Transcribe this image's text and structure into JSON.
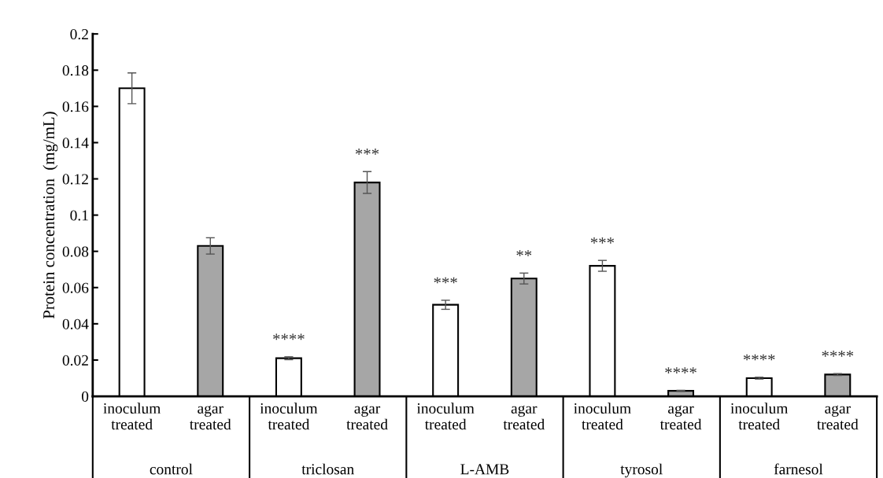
{
  "chart_data": {
    "type": "bar",
    "ylabel": "Protein concentration  (mg/mL)",
    "categories": [
      "inoculum\ntreated",
      "agar\ntreated",
      "inoculum\ntreated",
      "agar\ntreated",
      "inoculum\ntreated",
      "agar\ntreated",
      "inoculum\ntreated",
      "agar\ntreated",
      "inoculum\ntreated",
      "agar\ntreated"
    ],
    "values": [
      0.17,
      0.083,
      0.021,
      0.118,
      0.0505,
      0.065,
      0.072,
      0.003,
      0.01,
      0.012
    ],
    "errors": [
      0.0085,
      0.0045,
      0.0008,
      0.006,
      0.0025,
      0.003,
      0.003,
      0.0003,
      0.0005,
      0.0005
    ],
    "value_labels": [
      null,
      null,
      "****",
      "***",
      "***",
      "**",
      "***",
      "****",
      "****",
      "****"
    ],
    "colors": [
      "#ffffff",
      "#a6a6a6",
      "#ffffff",
      "#a6a6a6",
      "#ffffff",
      "#a6a6a6",
      "#ffffff",
      "#a6a6a6",
      "#ffffff",
      "#a6a6a6"
    ],
    "annotations": [
      "control",
      "triclosan",
      "L-AMB",
      "tyrosol",
      "farnesol"
    ],
    "ylim": [
      0,
      0.2
    ],
    "yticks": [
      0,
      0.02,
      0.04,
      0.06,
      0.08,
      0.1,
      0.12,
      0.14,
      0.16,
      0.18,
      0.2
    ],
    "grid": false
  }
}
